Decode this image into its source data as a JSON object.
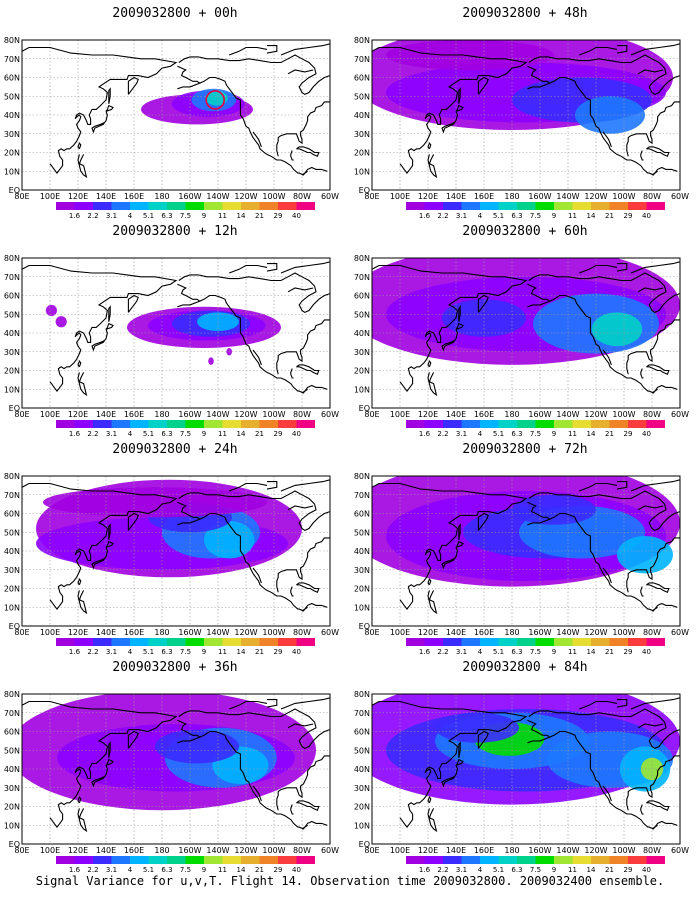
{
  "figure": {
    "caption": "Signal Variance for u,v,T. Flight 14. Observation time 2009032800. 2009032400 ensemble.",
    "lat_labels": [
      "80N",
      "70N",
      "60N",
      "50N",
      "40N",
      "30N",
      "20N",
      "10N",
      "EQ"
    ],
    "lon_labels": [
      "80E",
      "100E",
      "120E",
      "140E",
      "160E",
      "180",
      "160W",
      "140W",
      "120W",
      "100W",
      "80W",
      "60W"
    ],
    "colorbar": {
      "labels": [
        "1.6",
        "2.2",
        "3.1",
        "4",
        "5.1",
        "6.3",
        "7.5",
        "9",
        "11",
        "14",
        "21",
        "29",
        "40"
      ],
      "colors": [
        "#a100e0",
        "#8c00ff",
        "#3b2bff",
        "#1e78ff",
        "#00b4ff",
        "#00d2c8",
        "#00d28c",
        "#00dc00",
        "#a0e632",
        "#e6dc32",
        "#e6af2d",
        "#f08228",
        "#fa3c3c",
        "#f00082"
      ]
    },
    "colors": {
      "coast": "#000000",
      "grid": "#9a9a9a",
      "marker": "#e8003c"
    },
    "panels": [
      {
        "title": "2009032800 + 00h",
        "hour": 0,
        "has_marker": true
      },
      {
        "title": "2009032800 + 48h",
        "hour": 48,
        "has_marker": false
      },
      {
        "title": "2009032800 + 12h",
        "hour": 12,
        "has_marker": false
      },
      {
        "title": "2009032800 + 60h",
        "hour": 60,
        "has_marker": false
      },
      {
        "title": "2009032800 + 24h",
        "hour": 24,
        "has_marker": false
      },
      {
        "title": "2009032800 + 72h",
        "hour": 72,
        "has_marker": false
      },
      {
        "title": "2009032800 + 36h",
        "hour": 36,
        "has_marker": false
      },
      {
        "title": "2009032800 + 84h",
        "hour": 84,
        "has_marker": false
      }
    ]
  }
}
